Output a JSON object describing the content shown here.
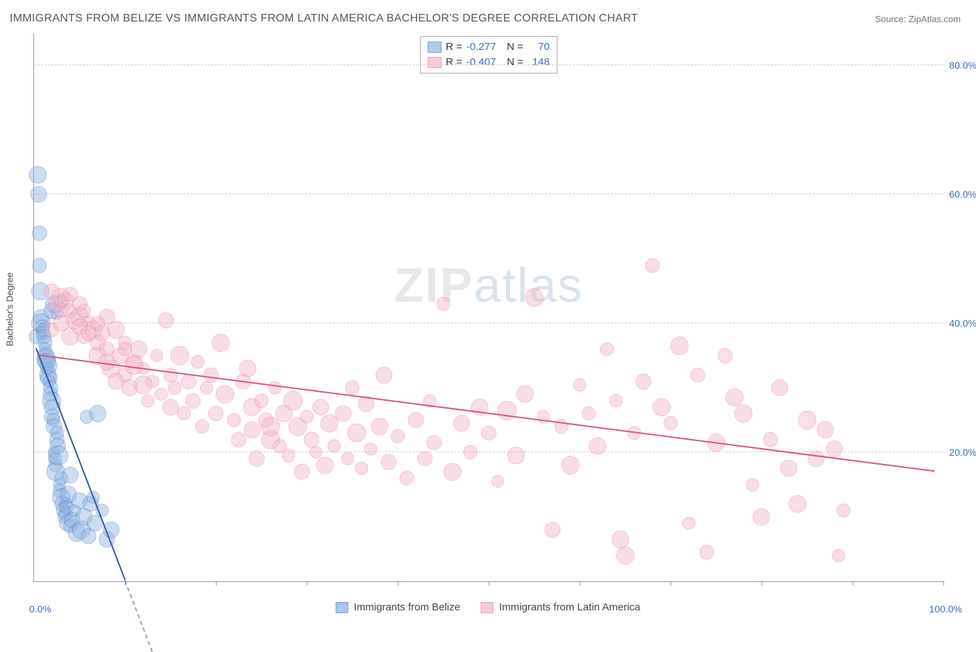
{
  "title": "IMMIGRANTS FROM BELIZE VS IMMIGRANTS FROM LATIN AMERICA BACHELOR'S DEGREE CORRELATION CHART",
  "source": "Source: ZipAtlas.com",
  "ylabel": "Bachelor's Degree",
  "watermark_bold": "ZIP",
  "watermark_light": "atlas",
  "chart": {
    "type": "scatter",
    "background_color": "#ffffff",
    "grid_color": "#cccccc",
    "axis_color": "#999999",
    "xlim": [
      0,
      100
    ],
    "ylim": [
      0,
      85
    ],
    "x_min_label": "0.0%",
    "x_max_label": "100.0%",
    "xtick_positions": [
      10,
      20,
      30,
      40,
      50,
      60,
      70,
      80,
      90,
      100
    ],
    "y_gridlines": [
      20,
      40,
      60,
      80
    ],
    "ytick_labels": [
      "20.0%",
      "40.0%",
      "60.0%",
      "80.0%"
    ],
    "tick_label_color": "#3b6db5",
    "tick_label_fontsize": 14,
    "title_fontsize": 16,
    "marker_radius_base": 9,
    "marker_opacity": 0.45,
    "marker_border_opacity": 0.9,
    "series": [
      {
        "name": "Immigrants from Belize",
        "fill_color": "#8fb4e3",
        "border_color": "#4a7bc2",
        "trend_color": "#2c5aa0",
        "r_value": "-0.277",
        "n_value": "70",
        "trend": {
          "x1": 0.2,
          "y1": 36,
          "x2": 10,
          "y2": 0,
          "dash_extend_x": 13
        },
        "points": [
          [
            0.3,
            38
          ],
          [
            0.4,
            63
          ],
          [
            0.5,
            60
          ],
          [
            0.6,
            54
          ],
          [
            0.6,
            49
          ],
          [
            0.7,
            45
          ],
          [
            0.8,
            41
          ],
          [
            0.8,
            40
          ],
          [
            0.9,
            39.5
          ],
          [
            1.0,
            39
          ],
          [
            1.0,
            38.5
          ],
          [
            1.1,
            38
          ],
          [
            1.2,
            37
          ],
          [
            1.2,
            36
          ],
          [
            1.3,
            35
          ],
          [
            1.3,
            34.5
          ],
          [
            1.4,
            34
          ],
          [
            1.5,
            33
          ],
          [
            1.5,
            32
          ],
          [
            1.6,
            31.5
          ],
          [
            1.6,
            33.5
          ],
          [
            1.7,
            31
          ],
          [
            1.8,
            30
          ],
          [
            1.8,
            29
          ],
          [
            1.9,
            28
          ],
          [
            2.0,
            27
          ],
          [
            2.0,
            25.5
          ],
          [
            2.1,
            25
          ],
          [
            2.2,
            24
          ],
          [
            2.2,
            20
          ],
          [
            2.3,
            19
          ],
          [
            2.4,
            18
          ],
          [
            2.4,
            17
          ],
          [
            2.5,
            22
          ],
          [
            2.5,
            23
          ],
          [
            2.6,
            21
          ],
          [
            2.7,
            19.5
          ],
          [
            2.8,
            15
          ],
          [
            2.8,
            14
          ],
          [
            3.0,
            13
          ],
          [
            3.0,
            16
          ],
          [
            3.1,
            12
          ],
          [
            3.2,
            11
          ],
          [
            3.3,
            10
          ],
          [
            3.5,
            12
          ],
          [
            3.5,
            10.5
          ],
          [
            3.6,
            11.5
          ],
          [
            3.7,
            9
          ],
          [
            3.8,
            13.5
          ],
          [
            4.0,
            16.5
          ],
          [
            4.0,
            8.5
          ],
          [
            4.2,
            9.5
          ],
          [
            4.5,
            11
          ],
          [
            4.7,
            7.5
          ],
          [
            5.0,
            12.5
          ],
          [
            5.2,
            8
          ],
          [
            5.5,
            10
          ],
          [
            5.8,
            25.5
          ],
          [
            6.0,
            7
          ],
          [
            6.2,
            12
          ],
          [
            6.5,
            13
          ],
          [
            6.7,
            9
          ],
          [
            7.0,
            26
          ],
          [
            7.5,
            11
          ],
          [
            8.0,
            6.5
          ],
          [
            8.5,
            8
          ],
          [
            2.0,
            42
          ],
          [
            2.2,
            43
          ],
          [
            2.5,
            41.5
          ],
          [
            3.0,
            43.5
          ]
        ]
      },
      {
        "name": "Immigrants from Latin America",
        "fill_color": "#f5b8c9",
        "border_color": "#e87a9b",
        "trend_color": "#e0527c",
        "r_value": "-0.407",
        "n_value": "148",
        "trend": {
          "x1": 0.5,
          "y1": 35,
          "x2": 99,
          "y2": 17
        },
        "points": [
          [
            2,
            45
          ],
          [
            2.5,
            43
          ],
          [
            3,
            44
          ],
          [
            3,
            42
          ],
          [
            3.5,
            43.5
          ],
          [
            4,
            44.5
          ],
          [
            4,
            42
          ],
          [
            4.5,
            40.5
          ],
          [
            5,
            43
          ],
          [
            5,
            41
          ],
          [
            5.5,
            42
          ],
          [
            5.5,
            38
          ],
          [
            6,
            40
          ],
          [
            6.5,
            39
          ],
          [
            7,
            35
          ],
          [
            7,
            37
          ],
          [
            7.5,
            38.5
          ],
          [
            8,
            41
          ],
          [
            8,
            36
          ],
          [
            8.5,
            33
          ],
          [
            9,
            39
          ],
          [
            9.5,
            35
          ],
          [
            10,
            37
          ],
          [
            10,
            32
          ],
          [
            10.5,
            30
          ],
          [
            11,
            34
          ],
          [
            11.5,
            36
          ],
          [
            12,
            33
          ],
          [
            12.5,
            28
          ],
          [
            13,
            31
          ],
          [
            13.5,
            35
          ],
          [
            14,
            29
          ],
          [
            14.5,
            40.5
          ],
          [
            15,
            27
          ],
          [
            15,
            32
          ],
          [
            15.5,
            30
          ],
          [
            16,
            35
          ],
          [
            16.5,
            26
          ],
          [
            17,
            31
          ],
          [
            17.5,
            28
          ],
          [
            18,
            34
          ],
          [
            18.5,
            24
          ],
          [
            19,
            30
          ],
          [
            19.5,
            32
          ],
          [
            20,
            26
          ],
          [
            20.5,
            37
          ],
          [
            21,
            29
          ],
          [
            22,
            25
          ],
          [
            22.5,
            22
          ],
          [
            23,
            31
          ],
          [
            23.5,
            33
          ],
          [
            24,
            27
          ],
          [
            24.5,
            19
          ],
          [
            25,
            28
          ],
          [
            25.5,
            25
          ],
          [
            26,
            22
          ],
          [
            26.5,
            30
          ],
          [
            27,
            21
          ],
          [
            27.5,
            26
          ],
          [
            28,
            19.5
          ],
          [
            28.5,
            28
          ],
          [
            29,
            24
          ],
          [
            29.5,
            17
          ],
          [
            30,
            25.5
          ],
          [
            30.5,
            22
          ],
          [
            31,
            20
          ],
          [
            31.5,
            27
          ],
          [
            32,
            18
          ],
          [
            32.5,
            24.5
          ],
          [
            33,
            21
          ],
          [
            34,
            26
          ],
          [
            34.5,
            19
          ],
          [
            35,
            30
          ],
          [
            35.5,
            23
          ],
          [
            36,
            17.5
          ],
          [
            36.5,
            27.5
          ],
          [
            37,
            20.5
          ],
          [
            38,
            24
          ],
          [
            38.5,
            32
          ],
          [
            39,
            18.5
          ],
          [
            40,
            22.5
          ],
          [
            41,
            16
          ],
          [
            42,
            25
          ],
          [
            43,
            19
          ],
          [
            43.5,
            28
          ],
          [
            44,
            21.5
          ],
          [
            45,
            43
          ],
          [
            46,
            17
          ],
          [
            47,
            24.5
          ],
          [
            48,
            20
          ],
          [
            49,
            27
          ],
          [
            50,
            23
          ],
          [
            51,
            15.5
          ],
          [
            52,
            26.5
          ],
          [
            53,
            19.5
          ],
          [
            54,
            29
          ],
          [
            55,
            44
          ],
          [
            56,
            25.5
          ],
          [
            57,
            8
          ],
          [
            58,
            24
          ],
          [
            59,
            18
          ],
          [
            60,
            30.5
          ],
          [
            61,
            26
          ],
          [
            62,
            21
          ],
          [
            63,
            36
          ],
          [
            64,
            28
          ],
          [
            64.5,
            6.5
          ],
          [
            65,
            4
          ],
          [
            66,
            23
          ],
          [
            67,
            31
          ],
          [
            68,
            49
          ],
          [
            69,
            27
          ],
          [
            70,
            24.5
          ],
          [
            71,
            36.5
          ],
          [
            72,
            9
          ],
          [
            73,
            32
          ],
          [
            74,
            4.5
          ],
          [
            75,
            21.5
          ],
          [
            76,
            35
          ],
          [
            77,
            28.5
          ],
          [
            78,
            26
          ],
          [
            79,
            15
          ],
          [
            80,
            10
          ],
          [
            81,
            22
          ],
          [
            82,
            30
          ],
          [
            83,
            17.5
          ],
          [
            84,
            12
          ],
          [
            85,
            25
          ],
          [
            86,
            19
          ],
          [
            87,
            23.5
          ],
          [
            88,
            20.5
          ],
          [
            88.5,
            4
          ],
          [
            89,
            11
          ],
          [
            2,
            39
          ],
          [
            3,
            40
          ],
          [
            4,
            38
          ],
          [
            5,
            39.5
          ],
          [
            6,
            38.5
          ],
          [
            7,
            40
          ],
          [
            8,
            34
          ],
          [
            9,
            31
          ],
          [
            10,
            36
          ],
          [
            11,
            33.5
          ],
          [
            12,
            30.5
          ],
          [
            24,
            23.5
          ],
          [
            26,
            24
          ]
        ]
      }
    ]
  }
}
